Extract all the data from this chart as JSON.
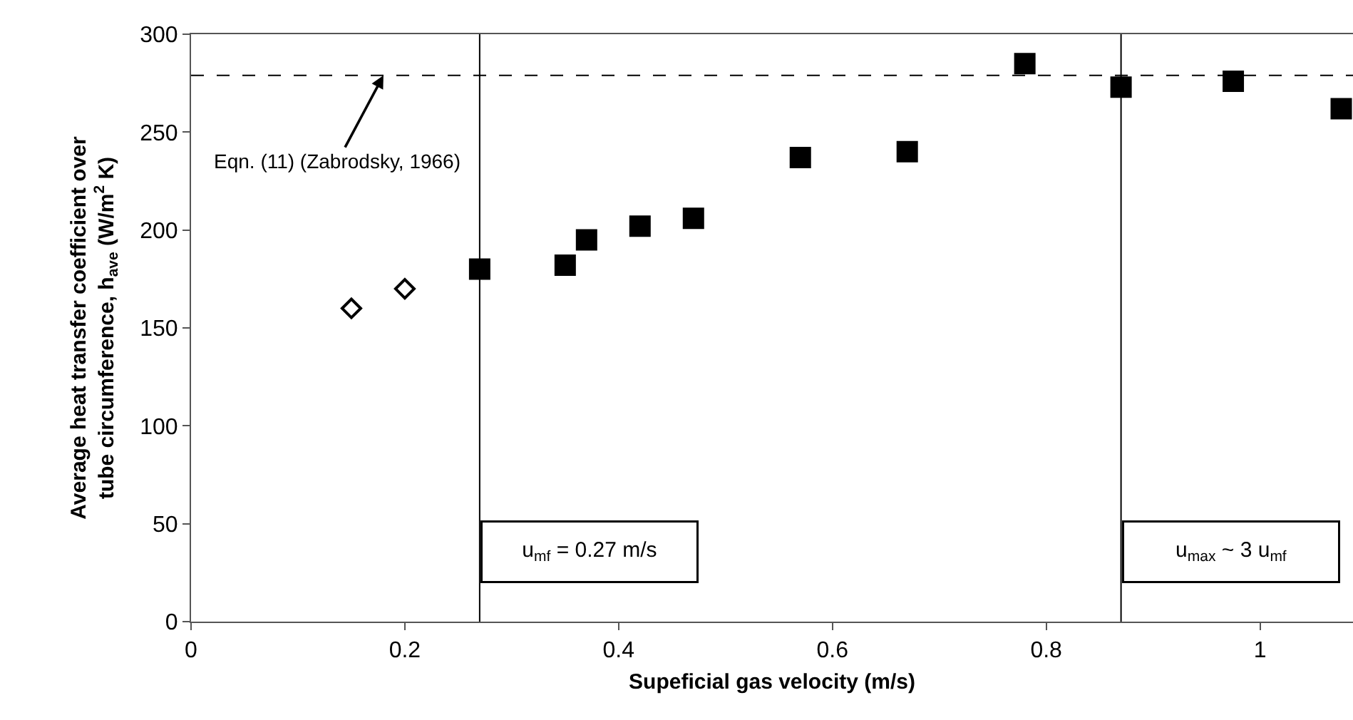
{
  "chart_data": {
    "type": "scatter",
    "xlabel": "Supeficial gas velocity (m/s)",
    "ylabel": "Average heat transfer coefficient over\ntube circumference, h$_{ave}$ (W/m$^{2}$ K)",
    "series": [
      {
        "color": "#000000",
        "marker": "diamond",
        "x": [
          0.15,
          0.2
        ],
        "values": [
          160,
          170
        ]
      },
      {
        "color": "#000000",
        "marker": "square",
        "x": [
          0.27,
          0.35,
          0.37,
          0.42,
          0.47,
          0.57,
          0.67,
          0.78,
          0.87,
          0.975,
          1.076
        ],
        "values": [
          180,
          182,
          195,
          202,
          206,
          237,
          240,
          285,
          273,
          276,
          262
        ]
      }
    ],
    "xlim": [
      0,
      1.087
    ],
    "xticks": [
      0,
      0.2,
      0.4,
      0.6,
      0.8,
      1
    ],
    "ylim": [
      0,
      300
    ],
    "yticks": [
      0,
      50,
      100,
      150,
      200,
      250,
      300
    ],
    "ref_lines": [
      {
        "axis": "y",
        "value": 279,
        "line_style": "dashed",
        "color": "#000000"
      },
      {
        "axis": "x",
        "value": 0.27,
        "label": "u$_{mf}$ = 0.27 m/s",
        "color": "#000000"
      },
      {
        "axis": "x",
        "value": 0.87,
        "label": "u$_{max}$ ~ 3 u$_{mf}$",
        "color": "#000000"
      }
    ],
    "annotations": [
      {
        "text": "Eqn. (11) (Zabrodsky, 1966)",
        "x": 0.18,
        "y": 279
      }
    ],
    "tick_labels": "xy"
  }
}
